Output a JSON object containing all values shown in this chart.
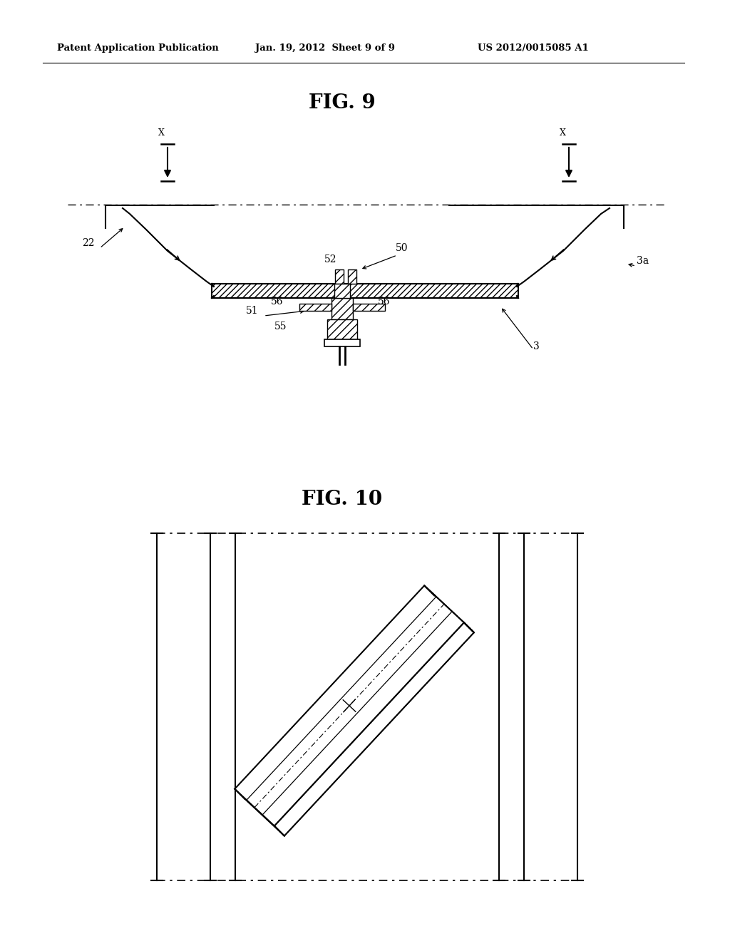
{
  "bg_color": "#ffffff",
  "header_text": "Patent Application Publication",
  "header_date": "Jan. 19, 2012  Sheet 9 of 9",
  "header_patent": "US 2012/0015085 A1",
  "fig9_title": "FIG. 9",
  "fig10_title": "FIG. 10",
  "line_color": "#000000"
}
